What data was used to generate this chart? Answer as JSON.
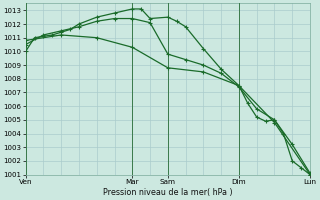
{
  "bg_color": "#cce8e0",
  "grid_color": "#aacccc",
  "line_color": "#1a6b2a",
  "xlabel": "Pression niveau de la mer( hPa )",
  "ylim": [
    1001,
    1013.5
  ],
  "ytick_min": 1001,
  "ytick_max": 1013,
  "xlim": [
    0,
    32
  ],
  "xtick_labels": [
    "Ven",
    "Mar",
    "Sam",
    "Dim",
    "Lun"
  ],
  "xtick_positions": [
    0,
    12,
    16,
    24,
    32
  ],
  "vlines": [
    0,
    12,
    16,
    24,
    32
  ],
  "series1": {
    "x": [
      0,
      1,
      2,
      3,
      4,
      5,
      6,
      8,
      10,
      12,
      13,
      14,
      16,
      17,
      18,
      20,
      22,
      24,
      25,
      26,
      27,
      28,
      29,
      30,
      31,
      32
    ],
    "y": [
      1010,
      1011,
      1011.1,
      1011.2,
      1011.4,
      1011.6,
      1012.0,
      1012.5,
      1012.8,
      1013.1,
      1013.1,
      1012.4,
      1012.5,
      1012.2,
      1011.8,
      1010.2,
      1008.7,
      1007.5,
      1006.2,
      1005.2,
      1004.9,
      1005.0,
      1004.0,
      1002.0,
      1001.5,
      1001.0
    ]
  },
  "series2": {
    "x": [
      0,
      2,
      4,
      6,
      8,
      10,
      12,
      14,
      16,
      18,
      20,
      22,
      24,
      26,
      28,
      30,
      32
    ],
    "y": [
      1010.5,
      1011.2,
      1011.5,
      1011.8,
      1012.2,
      1012.4,
      1012.4,
      1012.1,
      1009.8,
      1009.4,
      1009.0,
      1008.4,
      1007.4,
      1005.8,
      1005.0,
      1003.2,
      1001.1
    ]
  },
  "series3": {
    "x": [
      0,
      4,
      8,
      12,
      16,
      20,
      24,
      28,
      32
    ],
    "y": [
      1010.8,
      1011.2,
      1011.0,
      1010.3,
      1008.8,
      1008.5,
      1007.5,
      1004.8,
      1001.0
    ]
  }
}
